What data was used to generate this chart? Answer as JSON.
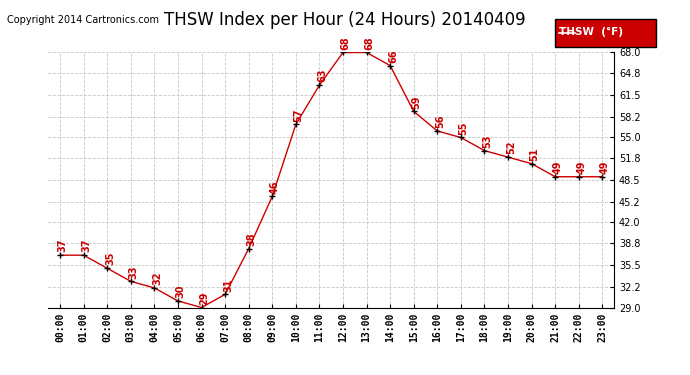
{
  "title": "THSW Index per Hour (24 Hours) 20140409",
  "copyright": "Copyright 2014 Cartronics.com",
  "legend_label": "THSW  (°F)",
  "hours": [
    "00:00",
    "01:00",
    "02:00",
    "03:00",
    "04:00",
    "05:00",
    "06:00",
    "07:00",
    "08:00",
    "09:00",
    "10:00",
    "11:00",
    "12:00",
    "13:00",
    "14:00",
    "15:00",
    "16:00",
    "17:00",
    "18:00",
    "19:00",
    "20:00",
    "21:00",
    "22:00",
    "23:00"
  ],
  "values": [
    37,
    37,
    35,
    33,
    32,
    30,
    29,
    31,
    38,
    46,
    57,
    63,
    68,
    68,
    66,
    59,
    56,
    55,
    53,
    52,
    51,
    49,
    49,
    49
  ],
  "ylim": [
    29.0,
    68.0
  ],
  "yticks": [
    29.0,
    32.2,
    35.5,
    38.8,
    42.0,
    45.2,
    48.5,
    51.8,
    55.0,
    58.2,
    61.5,
    64.8,
    68.0
  ],
  "line_color": "#cc0000",
  "marker_color": "#000000",
  "label_color": "#cc0000",
  "bg_color": "#ffffff",
  "grid_color": "#c8c8c8",
  "title_fontsize": 12,
  "copyright_fontsize": 7,
  "label_fontsize": 7,
  "tick_fontsize": 7,
  "legend_bg": "#cc0000",
  "legend_text_color": "#ffffff"
}
